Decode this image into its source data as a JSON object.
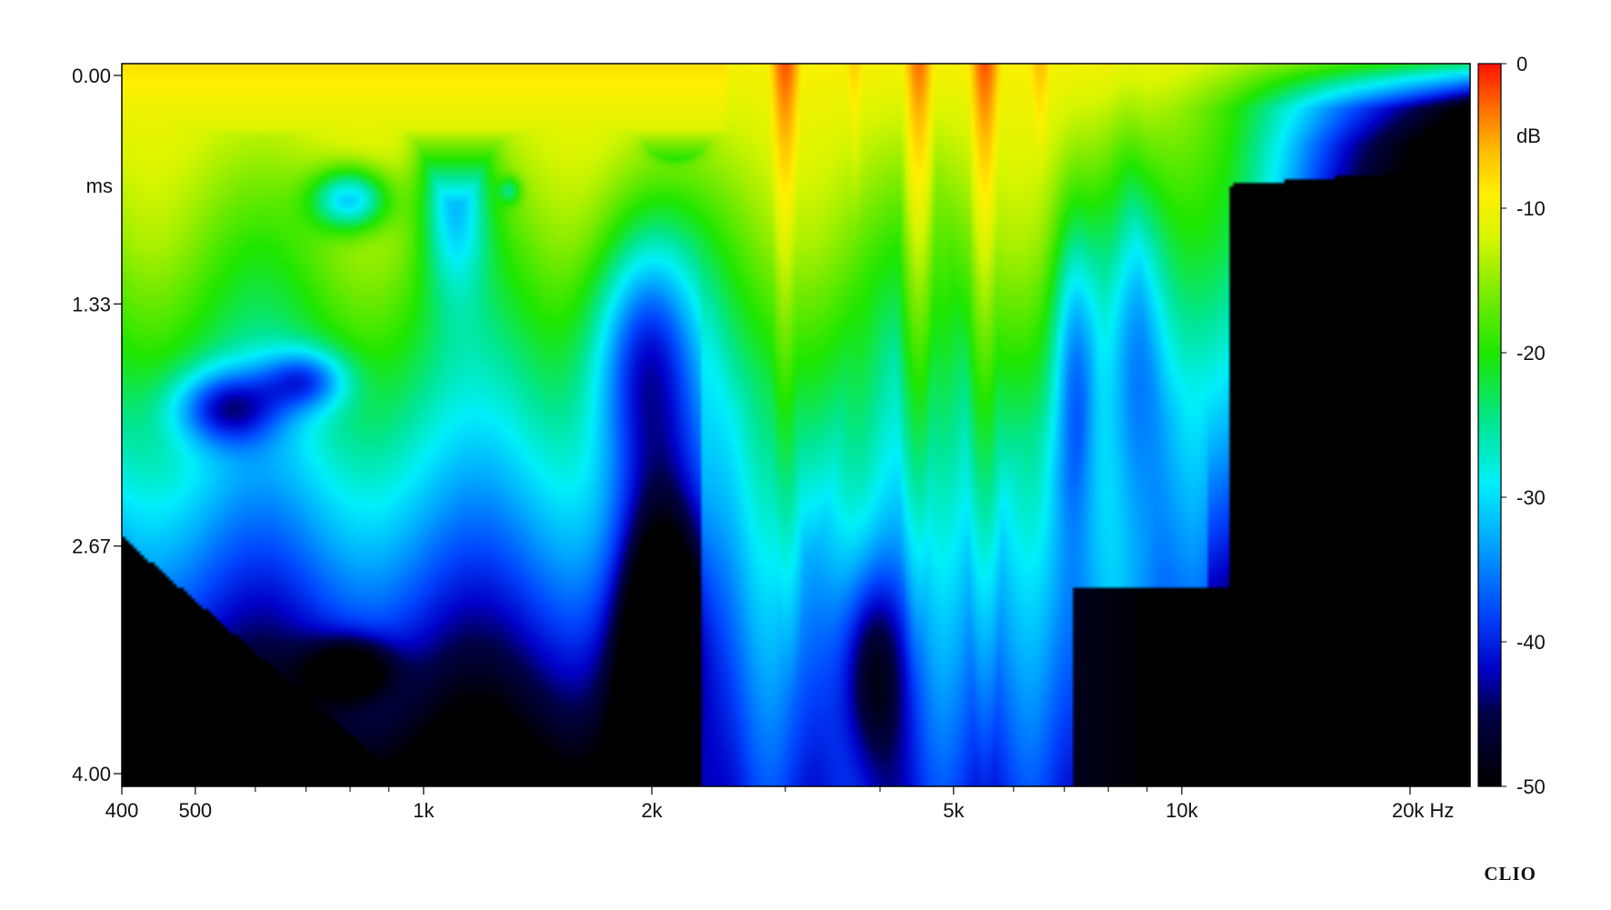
{
  "chart_data": {
    "type": "heatmap",
    "title": "",
    "xlabel": "",
    "ylabel": "",
    "x_scale": "log",
    "xlim": [
      400,
      24000
    ],
    "ylim": [
      0,
      4.0
    ],
    "z_range": [
      -50,
      0
    ],
    "x_tick_values": [
      400,
      500,
      1000,
      2000,
      5000,
      10000,
      20000
    ],
    "x_tick_labels": [
      "400",
      "500",
      "1k",
      "2k",
      "5k",
      "10k",
      "20k Hz"
    ],
    "y_tick_values": [
      0,
      1.33,
      2.67,
      4.0
    ],
    "y_tick_labels": [
      "0.00",
      "1.33",
      "2.67",
      "4.00"
    ],
    "y_unit": "ms",
    "colorbar": {
      "ticks": [
        0,
        -10,
        -20,
        -30,
        -40,
        -50
      ],
      "tick_labels": [
        "0",
        "-10",
        "-20",
        "-30",
        "-40",
        "-50"
      ],
      "unit": "dB",
      "colormap": [
        "#000000",
        "#0000c8",
        "#0050ff",
        "#00d8ff",
        "#00e070",
        "#30e000",
        "#d0f000",
        "#ffe000",
        "#ff8000",
        "#ff2000"
      ]
    },
    "grid": false,
    "brand": "CLIO",
    "ridges": [
      {
        "freq": 3000,
        "level_db": -2
      },
      {
        "freq": 4500,
        "level_db": -3
      },
      {
        "freq": 5500,
        "level_db": -2
      },
      {
        "freq": 6500,
        "level_db": -6
      },
      {
        "freq": 3700,
        "level_db": -7
      },
      {
        "freq": 8000,
        "level_db": -9
      },
      {
        "freq": 12000,
        "level_db": -11
      }
    ]
  }
}
